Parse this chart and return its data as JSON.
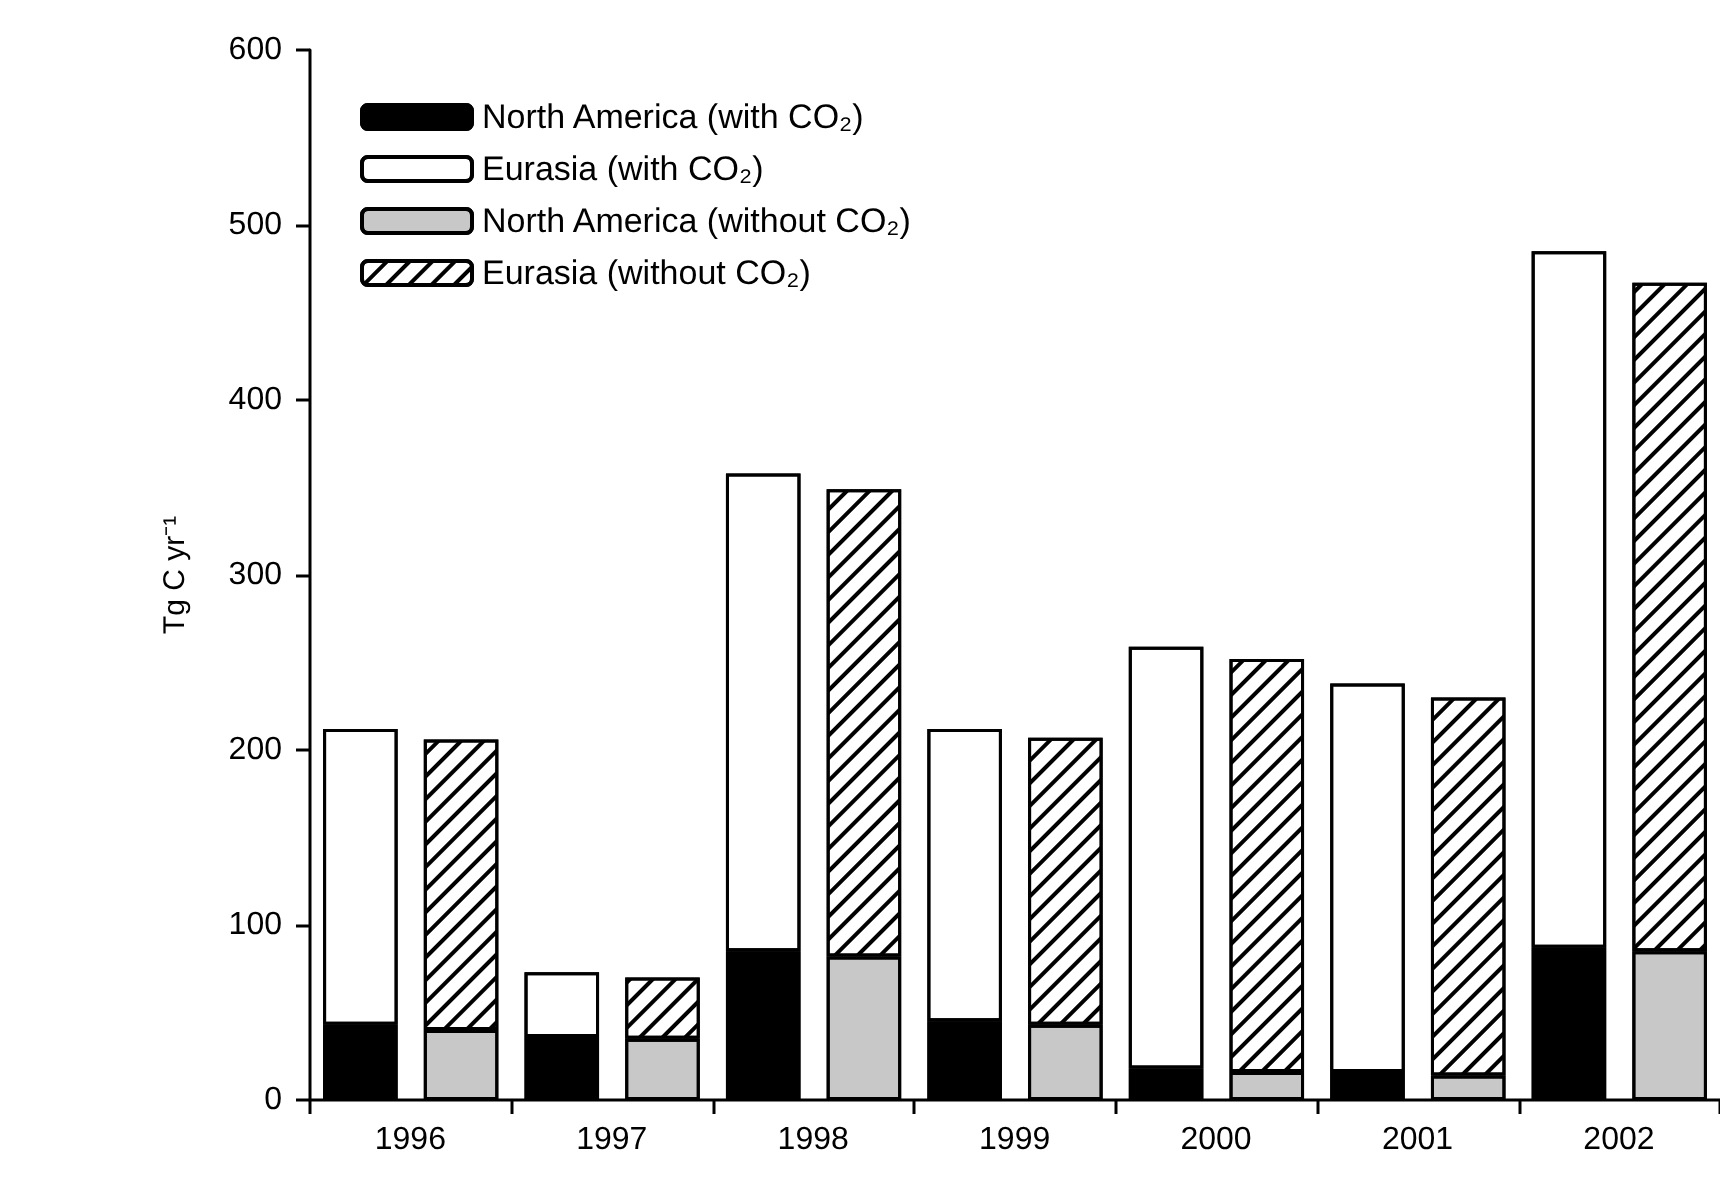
{
  "chart_data": {
    "type": "bar",
    "stacked": true,
    "ylabel": "Tg C yr⁻¹",
    "categories": [
      "1996",
      null,
      "1997",
      null,
      "1998",
      null,
      "1999",
      null,
      "2000",
      null,
      "2001",
      null,
      "2002",
      null
    ],
    "series": [
      {
        "name": "North America (with CO₂)",
        "color": "#000000",
        "values": [
          43,
          null,
          36,
          null,
          85,
          null,
          45,
          null,
          18,
          null,
          16,
          null,
          87,
          null
        ]
      },
      {
        "name": "Eurasia (with CO₂)",
        "color": "#ffffff",
        "values": [
          169,
          null,
          37,
          null,
          273,
          null,
          167,
          null,
          241,
          null,
          222,
          null,
          398,
          null
        ]
      },
      {
        "name": "North America (without CO₂)",
        "color": "#c8c8c8",
        "values": [
          null,
          40,
          null,
          35,
          null,
          82,
          null,
          43,
          null,
          16,
          null,
          14,
          null,
          85
        ]
      },
      {
        "name": "Eurasia (without CO₂)",
        "color": "#ffffff",
        "values": [
          null,
          166,
          null,
          35,
          null,
          267,
          null,
          164,
          null,
          236,
          null,
          216,
          null,
          382
        ]
      }
    ],
    "ylim": [
      0,
      600
    ],
    "yticks": [
      0,
      100,
      200,
      300,
      400,
      500,
      600
    ],
    "grid": false,
    "legend": "top left"
  }
}
